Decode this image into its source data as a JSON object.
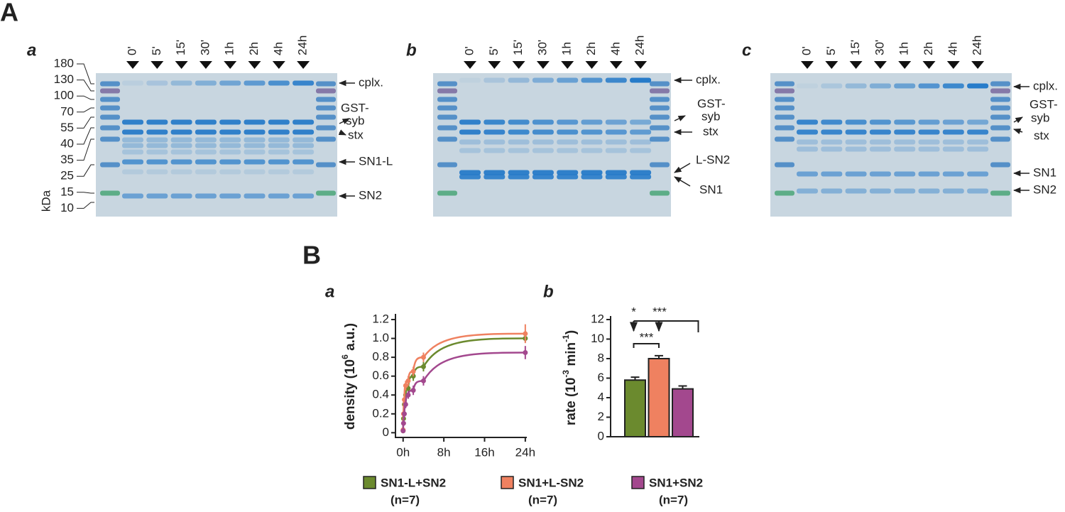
{
  "panel_A": {
    "label": "A",
    "marker_labels": [
      "180",
      "130",
      "100",
      "70",
      "55",
      "40",
      "35",
      "25",
      "15",
      "10"
    ],
    "marker_unit": "kDa",
    "gels": [
      {
        "label": "a",
        "lanes": [
          "0'",
          "5'",
          "15'",
          "30'",
          "1h",
          "2h",
          "4h",
          "24h"
        ],
        "annotations": [
          "cplx.",
          "GST-",
          "syb",
          "stx",
          "SN1-L",
          "SN2"
        ]
      },
      {
        "label": "b",
        "lanes": [
          "0'",
          "5'",
          "15'",
          "30'",
          "1h",
          "2h",
          "4h",
          "24h"
        ],
        "annotations": [
          "cplx.",
          "GST-",
          "syb",
          "stx",
          "L-SN2",
          "SN1"
        ]
      },
      {
        "label": "c",
        "lanes": [
          "0'",
          "5'",
          "15'",
          "30'",
          "1h",
          "2h",
          "4h",
          "24h"
        ],
        "annotations": [
          "cplx.",
          "GST-",
          "syb",
          "stx",
          "SN1",
          "SN2"
        ]
      }
    ]
  },
  "panel_B_label": "B",
  "chart_data": [
    {
      "type": "line",
      "label": "a",
      "ylabel": [
        "density (10",
        "6",
        " a.u.)"
      ],
      "x": [
        0,
        0.0833,
        0.25,
        0.5,
        1,
        2,
        4,
        24
      ],
      "xlim": [
        -1.5,
        24.3
      ],
      "xticks": [
        {
          "value": 0,
          "label": "0h"
        },
        {
          "value": 8,
          "label": "8h"
        },
        {
          "value": 16,
          "label": "16h"
        },
        {
          "value": 24,
          "label": "24h"
        }
      ],
      "ylim": [
        -0.05,
        1.2
      ],
      "yticks": [
        0,
        0.2,
        0.4,
        0.6,
        0.8,
        {
          "value": 1,
          "label": "1.0"
        },
        1.2
      ],
      "series": [
        {
          "name": "SN1-L+SN2",
          "n_label": "(n=7)",
          "color": "#6b8a2e",
          "values": [
            0.02,
            0.15,
            0.3,
            0.4,
            0.47,
            0.6,
            0.7,
            1.0
          ],
          "errors": [
            0.02,
            0.03,
            0.04,
            0.04,
            0.04,
            0.05,
            0.05,
            0.04
          ]
        },
        {
          "name": "SN1+L-SN2",
          "n_label": "(n=7)",
          "color": "#ef8160",
          "values": [
            0.03,
            0.2,
            0.35,
            0.5,
            0.55,
            0.65,
            0.8,
            1.05
          ],
          "errors": [
            0.02,
            0.04,
            0.05,
            0.05,
            0.05,
            0.05,
            0.05,
            0.1
          ]
        },
        {
          "name": "SN1+SN2",
          "n_label": "(n=7)",
          "color": "#a3488e",
          "values": [
            0.02,
            0.1,
            0.2,
            0.3,
            0.4,
            0.45,
            0.55,
            0.85
          ],
          "errors": [
            0.02,
            0.03,
            0.04,
            0.04,
            0.04,
            0.05,
            0.05,
            0.07
          ]
        }
      ]
    },
    {
      "type": "bar",
      "label": "b",
      "ylabel": [
        "rate (10",
        "-3",
        " min",
        "-1",
        ")"
      ],
      "values": [
        5.8,
        8.0,
        4.9
      ],
      "errors": [
        0.3,
        0.3,
        0.3
      ],
      "colors": [
        "#6b8a2e",
        "#ef8160",
        "#a3488e"
      ],
      "ylim": [
        0,
        12
      ],
      "yticks": [
        0,
        2,
        4,
        6,
        8,
        10,
        12
      ],
      "significance": [
        "*",
        "***",
        "***"
      ]
    }
  ]
}
